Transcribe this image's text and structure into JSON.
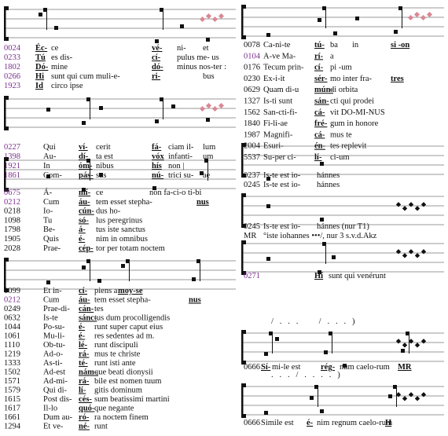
{
  "blocks": [
    {
      "rows": [
        {
          "id": "0024",
          "color": "#7b2f8e",
          "parts": [
            "Éc-",
            "ce",
            "vé-",
            "ni-",
            "et"
          ]
        },
        {
          "id": "0233",
          "color": "#7b2f8e",
          "parts": [
            "Tú",
            "es dis-",
            "cí-",
            "pulus me- us"
          ]
        },
        {
          "id": "1802",
          "color": "#7b2f8e",
          "parts": [
            "Dó-",
            "mine",
            "dó-",
            "minus nos-ter :"
          ]
        },
        {
          "id": "0266",
          "color": "#7b2f8e",
          "parts": [
            "Hi",
            "sunt qui cum muli-e-",
            "ri-",
            null,
            "bus"
          ]
        },
        {
          "id": "1923",
          "color": "#7b2f8e",
          "parts": [
            "Id",
            "circo ipse"
          ]
        }
      ]
    },
    {
      "rows": [
        {
          "id": "0227",
          "color": "#7b2f8e",
          "parts": [
            "Qui",
            "ví-",
            "cerit",
            "fá-",
            "ciam il-",
            "lum"
          ]
        },
        {
          "id": "1398",
          "color": "#7b2f8e",
          "parts": [
            "Au-",
            "dí-",
            "ta est",
            "vóx",
            "infanti-",
            "um"
          ]
        },
        {
          "id": "1921",
          "color": "#7b2f8e",
          "parts": [
            "In",
            "óm-",
            "nibus",
            "hís",
            "non |"
          ]
        },
        {
          "id": "1861",
          "color": "#7b2f8e",
          "parts": [
            "Com-",
            "pás-",
            "sus",
            "nú-",
            "trici su-",
            "ae"
          ]
        }
      ]
    },
    {
      "rows": [
        {
          "id": "0675",
          "color": "#7b2f8e",
          "parts": [
            "Á-",
            "mí-",
            "ce",
            "non fa-ci-o ti-bi"
          ]
        },
        {
          "id": "0212",
          "color": "#7b2f8e",
          "parts": [
            "Cum",
            "áu-",
            "tem esset stepha-",
            null,
            "nus"
          ]
        },
        {
          "id": "0218",
          "parts": [
            "Io-",
            "cún-",
            "dus ho-"
          ]
        },
        {
          "id": "1098",
          "parts": [
            "Tu",
            "só-",
            "lus peregrinus"
          ]
        },
        {
          "id": "1798",
          "parts": [
            "Be-",
            "á-",
            "tus iste sanctus"
          ]
        },
        {
          "id": "1905",
          "parts": [
            "Quis",
            "é-",
            "nim in omnibus"
          ]
        },
        {
          "id": "2028",
          "parts": [
            "Prae-",
            "cép-",
            "tor per totam noctem"
          ]
        }
      ]
    },
    {
      "rows": [
        {
          "id": "1099",
          "parts": [
            "Et in-",
            "cí-",
            "piens a",
            "moy-se"
          ]
        },
        {
          "id": "0212",
          "color": "#7b2f8e",
          "parts": [
            "Cum",
            "áu-",
            "tem esset stepha-",
            null,
            "nus"
          ]
        },
        {
          "id": "0249",
          "parts": [
            "Prae-di-",
            "cán-",
            "tes"
          ]
        },
        {
          "id": "0632",
          "parts": [
            "Is-te",
            "sánc-",
            "tus dum procolligendis"
          ]
        },
        {
          "id": "1044",
          "parts": [
            "Po-su-",
            "é-",
            "runt super caput eius"
          ]
        },
        {
          "id": "1061",
          "parts": [
            "Mu-li-",
            "é-",
            "res sedentes ad m."
          ]
        },
        {
          "id": "1110",
          "parts": [
            "Ob-tu-",
            "lé-",
            "runt discipuli"
          ]
        },
        {
          "id": "1219",
          "parts": [
            "Ad-o-",
            "rá-",
            "mus te christe"
          ]
        },
        {
          "id": "1333",
          "parts": [
            "As-ti-",
            "té-",
            "runt isti ante"
          ]
        },
        {
          "id": "1502",
          "parts": [
            "Ad-est",
            "nám-",
            "que beati dionysii"
          ]
        },
        {
          "id": "1571",
          "parts": [
            "Ad-mi-",
            "rá-",
            "bile est nomen tuum"
          ]
        },
        {
          "id": "1579",
          "parts": [
            "Qui di-",
            "lí-",
            "gitis dominum"
          ]
        },
        {
          "id": "1615",
          "parts": [
            "Post dis-",
            "cés-",
            "sum beatissimi martini"
          ]
        },
        {
          "id": "1617",
          "parts": [
            "Il-lo",
            "quó-",
            "que negante"
          ]
        },
        {
          "id": "1661",
          "parts": [
            "Dum au-",
            "ró-",
            "ra noctem finem"
          ]
        },
        {
          "id": "1294",
          "parts": [
            "Et ve-",
            "né-",
            "runt"
          ]
        }
      ]
    },
    {
      "rows": [
        {
          "id": "0078",
          "parts": [
            "Ca-ni-te",
            "tú-",
            "ba",
            "in",
            "si -on"
          ]
        },
        {
          "id": "0104",
          "color": "#7b2f8e",
          "parts": [
            "A-ve Ma-",
            "rí-",
            "a"
          ]
        },
        {
          "id": "0176",
          "parts": [
            "Tecum prin-",
            "cí-",
            "pi -um"
          ]
        },
        {
          "id": "0230",
          "parts": [
            "Ex-i-it",
            "sér-",
            "mo inter fra-",
            null,
            "tres"
          ]
        },
        {
          "id": "0629",
          "parts": [
            "Quam di-u",
            "mún-",
            "di orbita"
          ]
        },
        {
          "id": "1327",
          "parts": [
            "Is-ti sunt",
            "sán-",
            "cti qui prodei"
          ]
        },
        {
          "id": "1562",
          "parts": [
            "San-cti-fi-",
            "cá-",
            "vit DO-MI-NUS"
          ]
        },
        {
          "id": "1840",
          "parts": [
            "Fi-li-ae",
            "fré-",
            "gum in honore"
          ]
        },
        {
          "id": "1987",
          "parts": [
            "Magnifi-",
            "cá-",
            "mus te"
          ]
        },
        {
          "id": "2004",
          "parts": [
            "Esuri-",
            "én-",
            "tes replevit"
          ]
        },
        {
          "id": "5537",
          "parts": [
            "Su-per ci-",
            "lí-",
            "ci-um"
          ]
        }
      ]
    },
    {
      "rows": [
        {
          "id": "0237",
          "parts": [
            "Is-te est io-",
            "hánnes"
          ]
        },
        {
          "id": "0245",
          "parts": [
            "Is-te est io-",
            "hánnes"
          ]
        }
      ]
    },
    {
      "rows": [
        {
          "id": "0245",
          "parts": [
            "Is-te est io-",
            "hánnes (nur T1)"
          ]
        },
        {
          "id": "MR",
          "parts": [
            "°iste iohannes •••/, nur 3 s.v.d.Akz"
          ]
        }
      ]
    },
    {
      "rows": [
        {
          "id": "0271",
          "color": "#7b2f8e",
          "parts": [
            null,
            "Hí",
            "sunt qui venérunt"
          ]
        }
      ]
    },
    {
      "annotation": "/   .   .   .          /   .   .   .   )",
      "rows": [
        {
          "id": "0666",
          "parts": [
            "Sí-",
            "mi-le est",
            "rég-",
            "num caelo-rum",
            "MR"
          ]
        }
      ]
    },
    {
      "annotation": ".   .   .   /   .   .   .   .   )",
      "rows": [
        {
          "id": "0666",
          "parts": [
            "Simile est",
            "é-",
            "nim regnum caelo-rum",
            "H"
          ]
        }
      ]
    }
  ]
}
